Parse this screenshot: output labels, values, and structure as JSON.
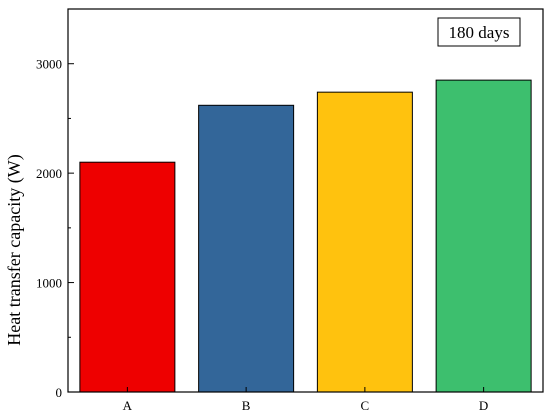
{
  "chart_data": {
    "type": "bar",
    "categories": [
      "A",
      "B",
      "C",
      "D"
    ],
    "values": [
      2100,
      2620,
      2740,
      2850
    ],
    "colors": [
      "#ee0000",
      "#336699",
      "#ffc20e",
      "#3dbf6e"
    ],
    "ylabel": "Heat transfer capacity (W)",
    "xlabel": "",
    "ylim": [
      0,
      3500
    ],
    "yticks": [
      0,
      1000,
      2000,
      3000
    ],
    "annotation": "180 days",
    "annotation_position": "top-right",
    "grid": false
  }
}
